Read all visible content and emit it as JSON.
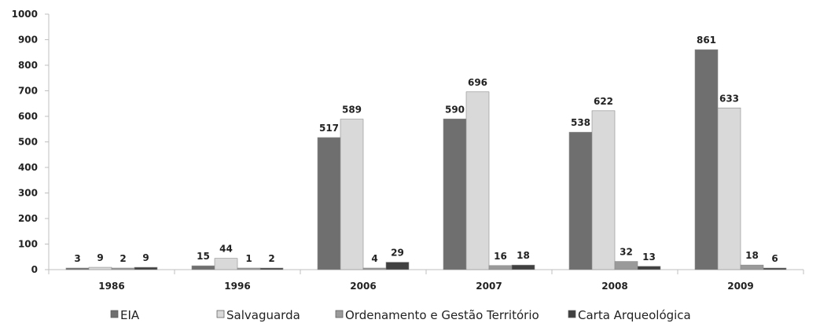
{
  "chart_data": {
    "type": "bar",
    "categories": [
      "1986",
      "1996",
      "2006",
      "2007",
      "2008",
      "2009"
    ],
    "series": [
      {
        "name": "EIA",
        "values": [
          3,
          15,
          517,
          590,
          538,
          861
        ]
      },
      {
        "name": "Salvaguarda",
        "values": [
          9,
          44,
          589,
          696,
          622,
          633
        ]
      },
      {
        "name": "Ordenamento e Gestão Território",
        "values": [
          2,
          1,
          4,
          16,
          32,
          18
        ]
      },
      {
        "name": "Carta Arqueológica",
        "values": [
          9,
          2,
          29,
          18,
          13,
          6
        ]
      }
    ],
    "ylim": [
      0,
      1000
    ],
    "yticks": [
      "0",
      "100",
      "200",
      "300",
      "400",
      "500",
      "600",
      "700",
      "800",
      "900",
      "1000"
    ],
    "grid": false,
    "legend_position": "bottom",
    "colors": [
      "#6f6f6f",
      "#d9d9d9",
      "#9a9a9a",
      "#404040"
    ]
  }
}
